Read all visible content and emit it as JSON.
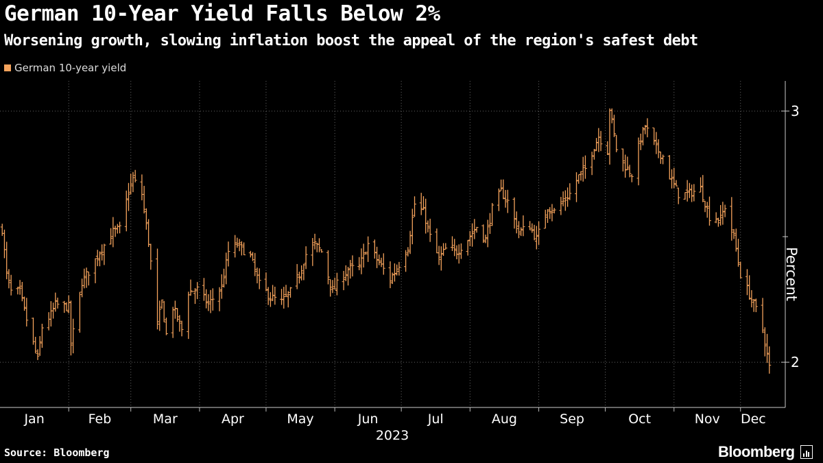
{
  "header": {
    "title": "German 10-Year Yield Falls Below 2%",
    "subtitle": "Worsening growth, slowing inflation boost the appeal of the region's safest debt"
  },
  "footer": {
    "source": "Source: Bloomberg",
    "brand": "Bloomberg"
  },
  "colors": {
    "series": "#f5a35c",
    "background": "#000000",
    "grid": "#666666",
    "text": "#ffffff"
  },
  "chart_data": {
    "type": "ohlc",
    "ylabel": "Percent",
    "ylim": [
      1.82,
      3.12
    ],
    "yticks": [
      2,
      3
    ],
    "xlabel": "2023",
    "x_range": [
      "2023-01-01",
      "2023-12-15"
    ],
    "months": [
      "Jan",
      "Feb",
      "Mar",
      "Apr",
      "May",
      "Jun",
      "Jul",
      "Aug",
      "Sep",
      "Oct",
      "Nov",
      "Dec"
    ],
    "grid": "dotted",
    "legend": {
      "position": "top-left"
    },
    "series": [
      {
        "name": "German 10-year yield",
        "daily_close_anchors": [
          [
            "2023-01-02",
            2.53
          ],
          [
            "2023-01-04",
            2.35
          ],
          [
            "2023-01-06",
            2.28
          ],
          [
            "2023-01-10",
            2.28
          ],
          [
            "2023-01-13",
            2.17
          ],
          [
            "2023-01-18",
            2.01
          ],
          [
            "2023-01-20",
            2.14
          ],
          [
            "2023-01-24",
            2.19
          ],
          [
            "2023-01-26",
            2.23
          ],
          [
            "2023-02-01",
            2.22
          ],
          [
            "2023-02-02",
            2.07
          ],
          [
            "2023-02-07",
            2.32
          ],
          [
            "2023-02-10",
            2.36
          ],
          [
            "2023-02-15",
            2.44
          ],
          [
            "2023-02-21",
            2.52
          ],
          [
            "2023-02-24",
            2.53
          ],
          [
            "2023-02-28",
            2.68
          ],
          [
            "2023-03-02",
            2.73
          ],
          [
            "2023-03-06",
            2.67
          ],
          [
            "2023-03-09",
            2.48
          ],
          [
            "2023-03-13",
            2.15
          ],
          [
            "2023-03-15",
            2.24
          ],
          [
            "2023-03-17",
            2.11
          ],
          [
            "2023-03-20",
            2.22
          ],
          [
            "2023-03-24",
            2.13
          ],
          [
            "2023-03-27",
            2.28
          ],
          [
            "2023-03-31",
            2.29
          ],
          [
            "2023-04-05",
            2.23
          ],
          [
            "2023-04-11",
            2.3
          ],
          [
            "2023-04-14",
            2.44
          ],
          [
            "2023-04-18",
            2.47
          ],
          [
            "2023-04-24",
            2.42
          ],
          [
            "2023-04-28",
            2.31
          ],
          [
            "2023-05-03",
            2.26
          ],
          [
            "2023-05-08",
            2.24
          ],
          [
            "2023-05-12",
            2.28
          ],
          [
            "2023-05-16",
            2.35
          ],
          [
            "2023-05-19",
            2.43
          ],
          [
            "2023-05-23",
            2.47
          ],
          [
            "2023-05-26",
            2.44
          ],
          [
            "2023-05-31",
            2.28
          ],
          [
            "2023-06-02",
            2.31
          ],
          [
            "2023-06-07",
            2.37
          ],
          [
            "2023-06-12",
            2.38
          ],
          [
            "2023-06-16",
            2.47
          ],
          [
            "2023-06-20",
            2.41
          ],
          [
            "2023-06-26",
            2.33
          ],
          [
            "2023-06-30",
            2.39
          ],
          [
            "2023-07-04",
            2.46
          ],
          [
            "2023-07-07",
            2.63
          ],
          [
            "2023-07-11",
            2.6
          ],
          [
            "2023-07-14",
            2.5
          ],
          [
            "2023-07-18",
            2.41
          ],
          [
            "2023-07-21",
            2.45
          ],
          [
            "2023-07-26",
            2.44
          ],
          [
            "2023-07-31",
            2.49
          ],
          [
            "2023-08-04",
            2.54
          ],
          [
            "2023-08-08",
            2.49
          ],
          [
            "2023-08-11",
            2.61
          ],
          [
            "2023-08-15",
            2.68
          ],
          [
            "2023-08-18",
            2.64
          ],
          [
            "2023-08-23",
            2.52
          ],
          [
            "2023-08-28",
            2.54
          ],
          [
            "2023-08-31",
            2.49
          ],
          [
            "2023-09-05",
            2.62
          ],
          [
            "2023-09-08",
            2.6
          ],
          [
            "2023-09-12",
            2.64
          ],
          [
            "2023-09-15",
            2.67
          ],
          [
            "2023-09-19",
            2.74
          ],
          [
            "2023-09-22",
            2.77
          ],
          [
            "2023-09-26",
            2.86
          ],
          [
            "2023-09-28",
            2.9
          ],
          [
            "2023-10-02",
            2.84
          ],
          [
            "2023-10-03",
            3.01
          ],
          [
            "2023-10-06",
            2.85
          ],
          [
            "2023-10-10",
            2.78
          ],
          [
            "2023-10-13",
            2.75
          ],
          [
            "2023-10-17",
            2.89
          ],
          [
            "2023-10-19",
            2.94
          ],
          [
            "2023-10-24",
            2.85
          ],
          [
            "2023-10-27",
            2.82
          ],
          [
            "2023-10-30",
            2.74
          ],
          [
            "2023-11-03",
            2.67
          ],
          [
            "2023-11-07",
            2.67
          ],
          [
            "2023-11-10",
            2.68
          ],
          [
            "2023-11-13",
            2.69
          ],
          [
            "2023-11-17",
            2.58
          ],
          [
            "2023-11-22",
            2.57
          ],
          [
            "2023-11-24",
            2.62
          ],
          [
            "2023-11-28",
            2.5
          ],
          [
            "2023-12-01",
            2.35
          ],
          [
            "2023-12-05",
            2.27
          ],
          [
            "2023-12-08",
            2.21
          ],
          [
            "2023-12-11",
            2.13
          ],
          [
            "2023-12-13",
            2.03
          ],
          [
            "2023-12-14",
            1.98
          ]
        ]
      }
    ]
  }
}
